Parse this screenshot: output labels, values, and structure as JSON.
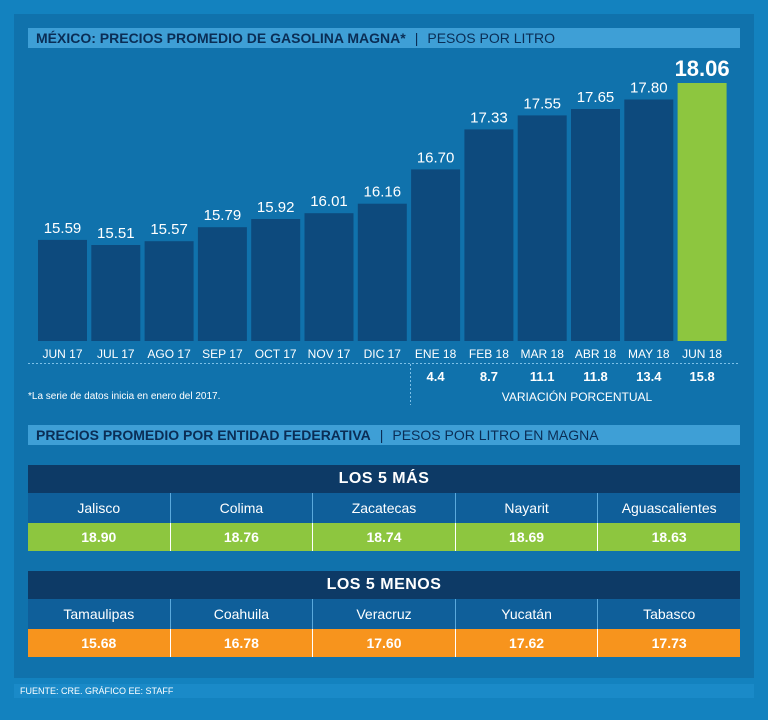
{
  "header": {
    "title": "MÉXICO: PRECIOS PROMEDIO DE GASOLINA MAGNA*",
    "subtitle": "PESOS POR LITRO"
  },
  "chart_data": {
    "type": "bar",
    "title": "MÉXICO: PRECIOS PROMEDIO DE GASOLINA MAGNA*",
    "ylabel": "PESOS POR LITRO",
    "categories": [
      "JUN 17",
      "JUL 17",
      "AGO 17",
      "SEP 17",
      "OCT 17",
      "NOV 17",
      "DIC 17",
      "ENE 18",
      "FEB 18",
      "MAR 18",
      "ABR 18",
      "MAY 18",
      "JUN 18"
    ],
    "values": [
      15.59,
      15.51,
      15.57,
      15.79,
      15.92,
      16.01,
      16.16,
      16.7,
      17.33,
      17.55,
      17.65,
      17.8,
      18.06
    ],
    "value_labels": [
      "15.59",
      "15.51",
      "15.57",
      "15.79",
      "15.92",
      "16.01",
      "16.16",
      "16.70",
      "17.33",
      "17.55",
      "17.65",
      "17.80",
      "18.06"
    ],
    "highlight_index": 12,
    "bar_color": "#0d4a7d",
    "highlight_color": "#8dc63f",
    "variation": {
      "label": "VARIACIÓN PORCENTUAL",
      "categories": [
        "ENE 18",
        "FEB 18",
        "MAR 18",
        "ABR 18",
        "MAY 18",
        "JUN 18"
      ],
      "values": [
        "4.4",
        "8.7",
        "11.1",
        "11.8",
        "13.4",
        "15.8"
      ]
    },
    "note": "*La serie de datos inicia en enero del 2017."
  },
  "section2": {
    "title": "PRECIOS PROMEDIO POR ENTIDAD FEDERATIVA",
    "subtitle": "PESOS POR LITRO EN MAGNA"
  },
  "top5": {
    "title": "LOS 5 MÁS",
    "states": [
      "Jalisco",
      "Colima",
      "Zacatecas",
      "Nayarit",
      "Aguascalientes"
    ],
    "prices": [
      "18.90",
      "18.76",
      "18.74",
      "18.69",
      "18.63"
    ]
  },
  "bottom5": {
    "title": "LOS 5 MENOS",
    "states": [
      "Tamaulipas",
      "Coahuila",
      "Veracruz",
      "Yucatán",
      "Tabasco"
    ],
    "prices": [
      "15.68",
      "16.78",
      "17.60",
      "17.62",
      "17.73"
    ]
  },
  "footer": "FUENTE: CRE. GRÁFICO EE: STAFF"
}
